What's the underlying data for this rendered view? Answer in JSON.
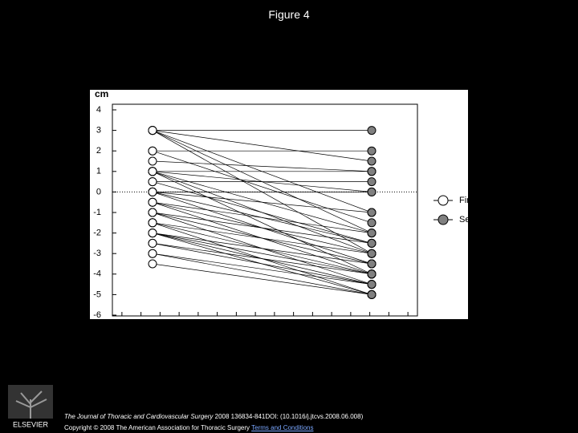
{
  "page_title": "Figure 4",
  "chart_data": {
    "type": "slope",
    "y_label": "cm",
    "ylim": [
      -6,
      4
    ],
    "yticks": [
      4,
      3,
      2,
      1,
      0,
      -1,
      -2,
      -3,
      -4,
      -5,
      -6
    ],
    "ref_line": 0,
    "legend": "right",
    "series": [
      {
        "name": "First",
        "color": "#ffffff",
        "values": [
          3,
          3,
          3,
          3,
          3,
          2,
          2,
          1.5,
          1,
          1,
          1,
          1,
          1,
          0.5,
          0.5,
          0,
          0,
          0,
          0,
          -0.5,
          -0.5,
          -0.5,
          -1,
          -1,
          -1,
          -1.5,
          -1.5,
          -1.5,
          -2,
          -2,
          -2,
          -2,
          -2.5,
          -2.5,
          -3,
          -3,
          -3.5
        ]
      },
      {
        "name": "Second",
        "color": "#808080",
        "values": [
          3,
          1.5,
          -1,
          -2,
          -3,
          2,
          -1.5,
          1,
          1,
          0,
          -2,
          -3,
          -4,
          0.5,
          -2.5,
          0,
          -1,
          -2.5,
          -3.5,
          -2,
          -3,
          -4,
          -2.5,
          -3.5,
          -4.5,
          -3,
          -4,
          -5,
          -3.5,
          -4,
          -4.5,
          -5,
          -4,
          -4.5,
          -4.5,
          -5,
          -5
        ]
      }
    ]
  },
  "footer": {
    "journal": "The Journal of Thoracic and Cardiovascular Surgery",
    "citation": "2008 136834-841DOI: (10.1016/j.jtcvs.2008.06.008)",
    "copyright": "Copyright © 2008 The American Association for Thoracic Surgery",
    "link": "Terms and Conditions",
    "publisher": "ELSEVIER"
  }
}
